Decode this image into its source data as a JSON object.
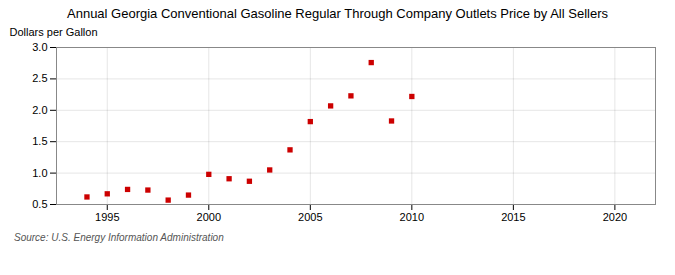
{
  "chart_data": {
    "type": "scatter",
    "title": "Annual Georgia Conventional Gasoline Regular Through Company Outlets Price by All Sellers",
    "ylabel": "Dollars per Gallon",
    "source": "Source: U.S. Energy Information Administration",
    "x": [
      1994,
      1995,
      1996,
      1997,
      1998,
      1999,
      2000,
      2001,
      2002,
      2003,
      2004,
      2005,
      2006,
      2007,
      2008,
      2009,
      2010
    ],
    "values": [
      0.62,
      0.67,
      0.74,
      0.73,
      0.57,
      0.65,
      0.98,
      0.91,
      0.87,
      1.05,
      1.37,
      1.82,
      2.07,
      2.23,
      2.76,
      1.83,
      2.22
    ],
    "color": "#cc0000",
    "marker": "square",
    "xlim": [
      1992.5,
      2022
    ],
    "ylim": [
      0.5,
      3.0
    ],
    "xticks": [
      1995,
      2000,
      2005,
      2010,
      2015,
      2020
    ],
    "yticks": [
      0.5,
      {
        "value": 1.0,
        "label": "1.0"
      },
      1.5,
      {
        "value": 2.0,
        "label": "2.0"
      },
      2.5,
      {
        "value": 3.0,
        "label": "3.0"
      }
    ],
    "grid": true
  }
}
